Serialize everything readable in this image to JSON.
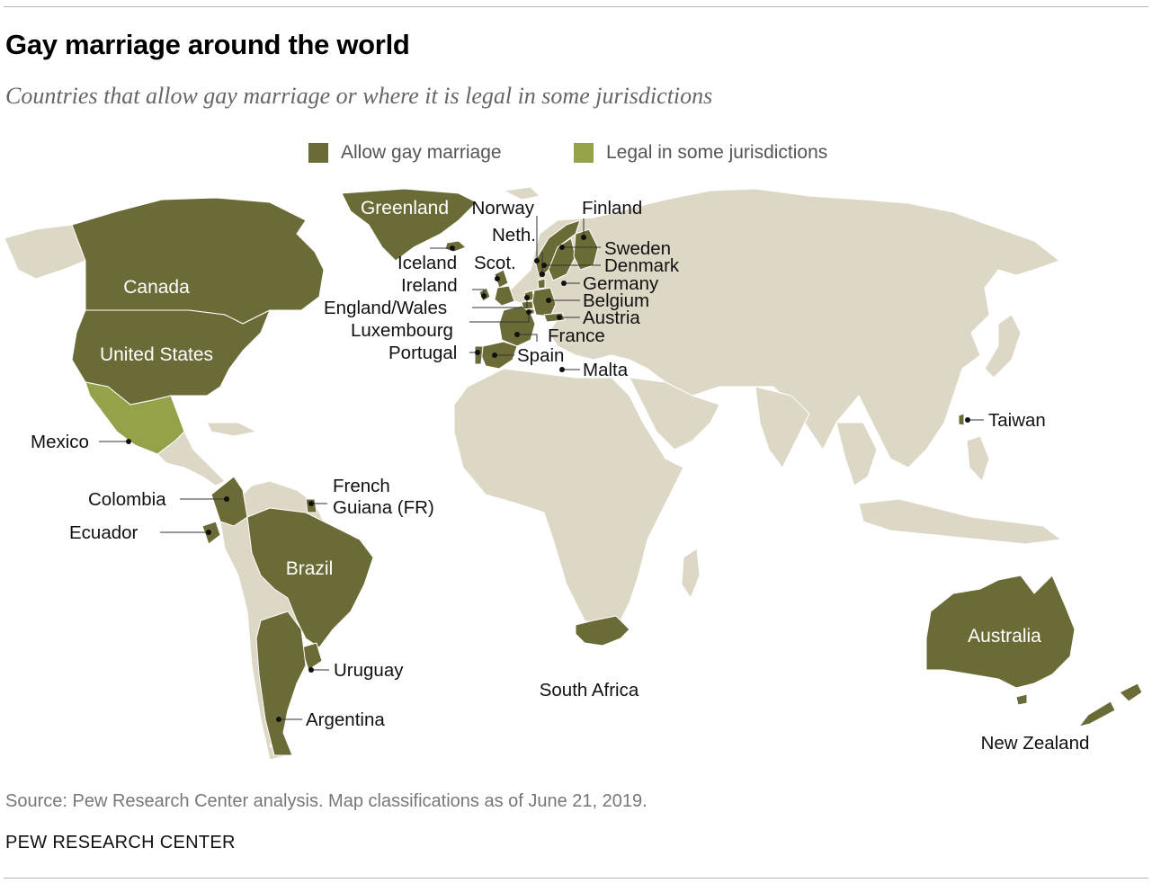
{
  "title": "Gay marriage around the world",
  "subtitle": "Countries that allow gay marriage or where it is legal in some jurisdictions",
  "colors": {
    "allow": "#6b6b37",
    "some_jurisdictions": "#96a24a",
    "land": "#ddd7c6",
    "border": "#ffffff"
  },
  "legend": {
    "allow_label": "Allow gay marriage",
    "some_label": "Legal in some jurisdictions"
  },
  "regions": {
    "greenland": "Greenland",
    "canada": "Canada",
    "united_states": "United States",
    "brazil": "Brazil",
    "australia": "Australia"
  },
  "labels": {
    "norway": "Norway",
    "finland": "Finland",
    "sweden": "Sweden",
    "neth": "Neth.",
    "denmark": "Denmark",
    "iceland": "Iceland",
    "scot": "Scot.",
    "germany": "Germany",
    "ireland": "Ireland",
    "belgium": "Belgium",
    "england_wales": "England/Wales",
    "austria": "Austria",
    "luxembourg": "Luxembourg",
    "france": "France",
    "portugal": "Portugal",
    "spain": "Spain",
    "malta": "Malta",
    "taiwan": "Taiwan",
    "mexico": "Mexico",
    "colombia": "Colombia",
    "french_guiana_1": "French",
    "french_guiana_2": "Guiana (FR)",
    "ecuador": "Ecuador",
    "uruguay": "Uruguay",
    "argentina": "Argentina",
    "south_africa": "South Africa",
    "new_zealand": "New Zealand"
  },
  "map_data": {
    "allow_gay_marriage": [
      "Greenland",
      "Canada",
      "United States",
      "Iceland",
      "Norway",
      "Finland",
      "Sweden",
      "Denmark",
      "Netherlands",
      "Scotland",
      "Ireland",
      "England/Wales",
      "Germany",
      "Belgium",
      "Luxembourg",
      "Austria",
      "France",
      "Portugal",
      "Spain",
      "Malta",
      "Taiwan",
      "Colombia",
      "French Guiana (FR)",
      "Ecuador",
      "Brazil",
      "Uruguay",
      "Argentina",
      "South Africa",
      "Australia",
      "New Zealand"
    ],
    "legal_in_some_jurisdictions": [
      "Mexico"
    ]
  },
  "source": "Source: Pew Research Center analysis. Map classifications as of June 21, 2019.",
  "org": "PEW RESEARCH CENTER"
}
